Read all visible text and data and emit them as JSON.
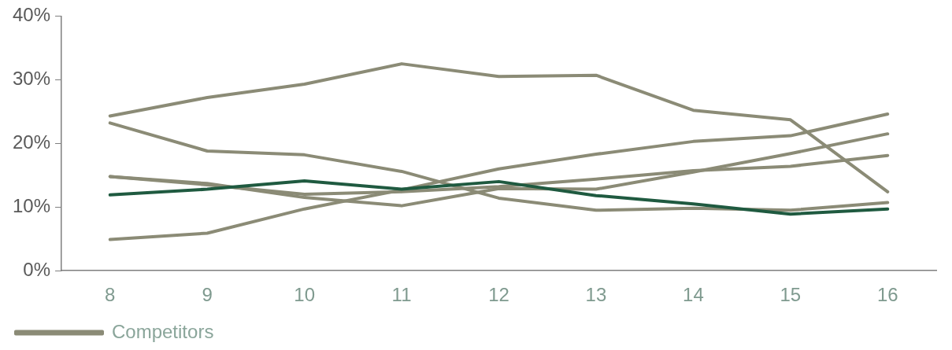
{
  "chart_data": {
    "type": "line",
    "categories": [
      "8",
      "9",
      "10",
      "11",
      "12",
      "13",
      "14",
      "15",
      "16"
    ],
    "series": [
      {
        "name": "Competitors",
        "color": "#8b8b76",
        "values": [
          24.3,
          27.2,
          29.3,
          32.5,
          30.5,
          30.7,
          25.2,
          23.7,
          12.4
        ]
      },
      {
        "color": "#8b8b76",
        "values": [
          23.2,
          18.8,
          18.2,
          15.6,
          11.4,
          9.5,
          9.8,
          9.5,
          10.7
        ]
      },
      {
        "color": "#8b8b76",
        "values": [
          14.8,
          13.7,
          11.5,
          10.2,
          12.9,
          12.8,
          15.5,
          18.4,
          21.5
        ]
      },
      {
        "color": "#8b8b76",
        "values": [
          4.9,
          5.9,
          9.7,
          12.7,
          16.0,
          18.3,
          20.3,
          21.2,
          24.6
        ]
      },
      {
        "color": "#8b8b76",
        "values": [
          14.8,
          13.5,
          12.0,
          12.4,
          13.2,
          14.4,
          15.7,
          16.4,
          18.1
        ]
      },
      {
        "color": "#1f5a40",
        "values": [
          11.9,
          12.8,
          14.1,
          12.8,
          14.0,
          11.8,
          10.5,
          8.9,
          9.7
        ]
      }
    ],
    "ylim": [
      0,
      40
    ],
    "yticks": [
      {
        "value": 0,
        "label": "0%"
      },
      {
        "value": 10,
        "label": "10%"
      },
      {
        "value": 20,
        "label": "20%"
      },
      {
        "value": 30,
        "label": "30%"
      },
      {
        "value": 40,
        "label": "40%"
      }
    ],
    "grid": false,
    "legend": "bottom left",
    "marker": "none",
    "line_style": "solid"
  }
}
